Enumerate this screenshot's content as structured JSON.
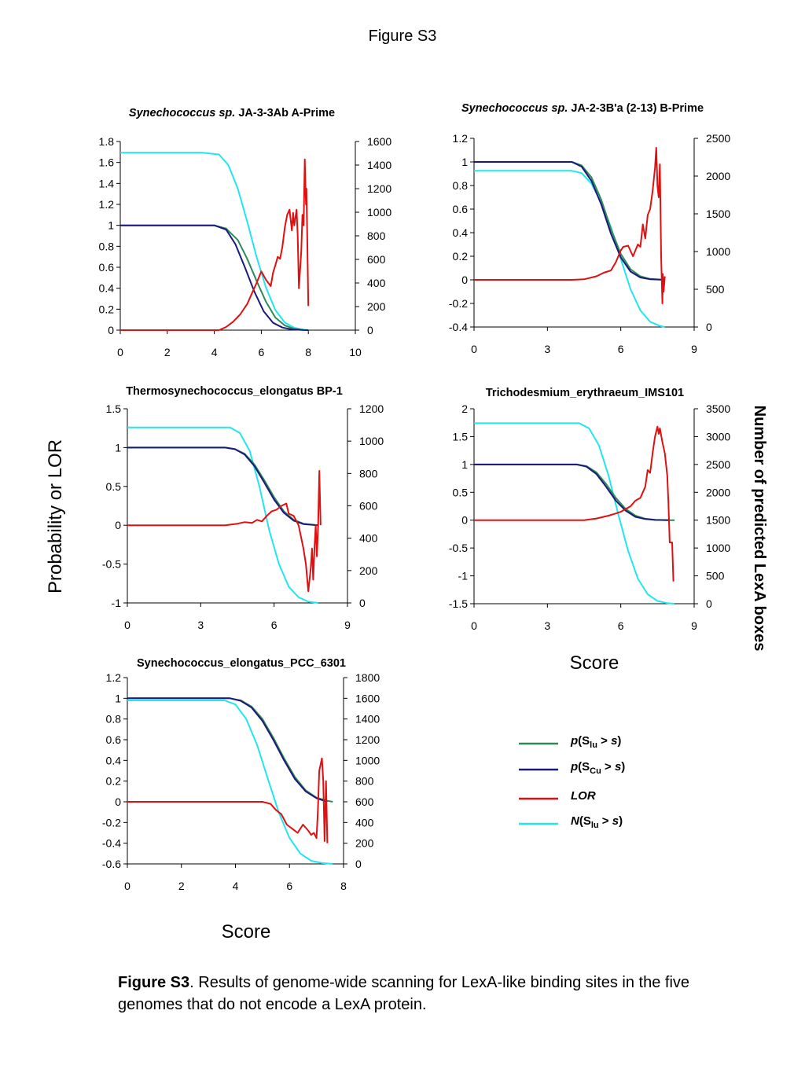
{
  "figure_title": "Figure S3",
  "y_axis_label": "Probability or LOR",
  "y2_axis_label": "Number of predicted LexA boxes",
  "x_axis_label_right": "Score",
  "x_axis_label_bottom": "Score",
  "caption": {
    "lead": "Figure S3",
    "text": ". Results of genome-wide scanning for LexA-like binding sites in the five genomes that do not encode a LexA protein."
  },
  "legend": {
    "items": [
      {
        "key": "p_lu",
        "pre_italic": "p",
        "mid": "(S",
        "sub": "lu",
        "post": " > ",
        "post_italic": "s",
        "end": ")",
        "color": "#2e8b57"
      },
      {
        "key": "p_cu",
        "pre_italic": "p",
        "mid": "(S",
        "sub": "Cu",
        "post": " > ",
        "post_italic": "s",
        "end": ")",
        "color": "#1a1a7a"
      },
      {
        "key": "lor",
        "pre_italic": "LOR",
        "mid": "",
        "sub": "",
        "post": "",
        "post_italic": "",
        "end": "",
        "color": "#e01010"
      },
      {
        "key": "n_lu",
        "pre_italic": "N",
        "mid": "(S",
        "sub": "lu",
        "post": " > ",
        "post_italic": "s",
        "end": ")",
        "color": "#22e5ee"
      }
    ]
  },
  "colors": {
    "p_lu": "#2e8b57",
    "p_cu": "#1a1a7a",
    "lor": "#e01010",
    "n_lu": "#22e5ee"
  },
  "chart_data": [
    {
      "type": "line",
      "title_italic": "Synechococcus sp.",
      "title_rest": " JA-3-3Ab A-Prime",
      "xlim": [
        0,
        10
      ],
      "xticks": [
        0,
        2,
        4,
        6,
        8,
        10
      ],
      "ylim": [
        0,
        1.8
      ],
      "yticks": [
        0,
        0.2,
        0.4,
        0.6,
        0.8,
        1,
        1.2,
        1.4,
        1.6,
        1.8
      ],
      "y2lim": [
        0,
        1600
      ],
      "y2ticks": [
        0,
        200,
        400,
        600,
        800,
        1000,
        1200,
        1400,
        1600
      ],
      "series": [
        {
          "key": "n_lu",
          "axis": "y2",
          "x": [
            0,
            3.5,
            4.2,
            4.6,
            5.0,
            5.4,
            5.8,
            6.2,
            6.6,
            7.0,
            7.4,
            7.8,
            8.0
          ],
          "y": [
            1505,
            1505,
            1490,
            1400,
            1200,
            920,
            620,
            360,
            170,
            65,
            20,
            4,
            0
          ]
        },
        {
          "key": "p_lu",
          "axis": "y",
          "x": [
            0,
            4.0,
            4.5,
            5.0,
            5.4,
            5.8,
            6.2,
            6.6,
            7.0,
            7.4,
            7.8,
            8.0
          ],
          "y": [
            1,
            1,
            0.97,
            0.86,
            0.68,
            0.47,
            0.27,
            0.12,
            0.045,
            0.012,
            0.002,
            0
          ]
        },
        {
          "key": "p_cu",
          "axis": "y",
          "x": [
            0,
            4.0,
            4.5,
            4.9,
            5.3,
            5.7,
            6.1,
            6.5,
            6.9,
            7.3,
            7.8,
            8.0
          ],
          "y": [
            1,
            1,
            0.96,
            0.82,
            0.6,
            0.37,
            0.18,
            0.07,
            0.025,
            0.007,
            0.001,
            0
          ]
        },
        {
          "key": "lor",
          "axis": "y",
          "x": [
            0,
            4.0,
            4.2,
            4.5,
            4.8,
            5.1,
            5.4,
            5.6,
            5.8,
            6.0,
            6.2,
            6.4,
            6.5,
            6.6,
            6.7,
            6.8,
            6.9,
            7.0,
            7.1,
            7.2,
            7.3,
            7.35,
            7.4,
            7.5,
            7.55,
            7.6,
            7.7,
            7.75,
            7.8,
            7.85,
            7.9,
            7.92,
            7.95,
            8.0
          ],
          "y": [
            0,
            0,
            0,
            0.03,
            0.08,
            0.15,
            0.25,
            0.35,
            0.45,
            0.56,
            0.48,
            0.42,
            0.55,
            0.62,
            0.7,
            0.68,
            0.8,
            0.98,
            1.1,
            1.15,
            0.95,
            1.12,
            1.0,
            1.15,
            0.9,
            0.4,
            0.75,
            1.1,
            1.0,
            1.63,
            1.2,
            1.35,
            0.95,
            0.23
          ]
        }
      ]
    },
    {
      "type": "line",
      "title_italic": "Synechococcus sp.",
      "title_rest": " JA-2-3B'a (2-13) B-Prime",
      "xlim": [
        0,
        9
      ],
      "xticks": [
        0,
        3,
        6,
        9
      ],
      "ylim": [
        -0.4,
        1.2
      ],
      "yticks": [
        -0.4,
        -0.2,
        0,
        0.2,
        0.4,
        0.6,
        0.8,
        1,
        1.2
      ],
      "y2lim": [
        0,
        2500
      ],
      "y2ticks": [
        0,
        500,
        1000,
        1500,
        2000,
        2500
      ],
      "series": [
        {
          "key": "n_lu",
          "axis": "y2",
          "x": [
            0,
            4.0,
            4.4,
            4.8,
            5.2,
            5.6,
            6.0,
            6.4,
            6.8,
            7.2,
            7.6,
            7.8
          ],
          "y": [
            2070,
            2070,
            2040,
            1900,
            1650,
            1320,
            900,
            500,
            220,
            70,
            15,
            0
          ]
        },
        {
          "key": "p_lu",
          "axis": "y",
          "x": [
            0,
            4.0,
            4.4,
            4.8,
            5.2,
            5.6,
            6.0,
            6.4,
            6.8,
            7.2,
            7.8
          ],
          "y": [
            1,
            1,
            0.97,
            0.87,
            0.68,
            0.43,
            0.22,
            0.09,
            0.03,
            0.008,
            0
          ]
        },
        {
          "key": "p_cu",
          "axis": "y",
          "x": [
            0,
            4.0,
            4.4,
            4.8,
            5.2,
            5.6,
            6.0,
            6.4,
            6.8,
            7.2,
            7.8
          ],
          "y": [
            1,
            1,
            0.96,
            0.84,
            0.64,
            0.39,
            0.19,
            0.07,
            0.02,
            0.005,
            0
          ]
        },
        {
          "key": "lor",
          "axis": "y",
          "x": [
            0,
            4.0,
            4.5,
            5.0,
            5.3,
            5.6,
            5.8,
            6.0,
            6.1,
            6.3,
            6.5,
            6.7,
            6.8,
            6.9,
            7.0,
            7.1,
            7.2,
            7.3,
            7.4,
            7.45,
            7.5,
            7.55,
            7.6,
            7.65,
            7.7,
            7.72,
            7.75,
            7.8
          ],
          "y": [
            0,
            0,
            0.005,
            0.03,
            0.06,
            0.08,
            0.15,
            0.25,
            0.28,
            0.29,
            0.2,
            0.3,
            0.28,
            0.47,
            0.35,
            0.55,
            0.6,
            0.75,
            0.95,
            1.12,
            0.8,
            0.7,
            0.98,
            0.2,
            -0.2,
            0.05,
            -0.1,
            0.03
          ]
        }
      ]
    },
    {
      "type": "line",
      "title_italic": "",
      "title_rest": "Thermosynechococcus_elongatus BP-1",
      "xlim": [
        0,
        9
      ],
      "xticks": [
        0,
        3,
        6,
        9
      ],
      "ylim": [
        -1,
        1.5
      ],
      "yticks": [
        -1,
        -0.5,
        0,
        0.5,
        1,
        1.5
      ],
      "y2lim": [
        0,
        1200
      ],
      "y2ticks": [
        0,
        200,
        400,
        600,
        800,
        1000,
        1200
      ],
      "series": [
        {
          "key": "n_lu",
          "axis": "y2",
          "x": [
            0,
            4.2,
            4.6,
            5.0,
            5.4,
            5.8,
            6.2,
            6.6,
            7.0,
            7.4,
            7.8
          ],
          "y": [
            1085,
            1085,
            1050,
            940,
            720,
            450,
            240,
            100,
            35,
            8,
            0
          ]
        },
        {
          "key": "p_lu",
          "axis": "y",
          "x": [
            0,
            4.0,
            4.4,
            4.8,
            5.2,
            5.6,
            6.0,
            6.4,
            6.8,
            7.2,
            7.8
          ],
          "y": [
            1,
            1,
            0.98,
            0.92,
            0.78,
            0.58,
            0.36,
            0.18,
            0.07,
            0.02,
            0
          ]
        },
        {
          "key": "p_cu",
          "axis": "y",
          "x": [
            0,
            4.0,
            4.4,
            4.8,
            5.2,
            5.6,
            6.0,
            6.4,
            6.8,
            7.2,
            7.8
          ],
          "y": [
            1,
            1,
            0.98,
            0.91,
            0.76,
            0.55,
            0.33,
            0.16,
            0.06,
            0.015,
            0
          ]
        },
        {
          "key": "lor",
          "axis": "y",
          "x": [
            0,
            4.0,
            4.5,
            4.8,
            5.1,
            5.3,
            5.5,
            5.7,
            5.9,
            6.1,
            6.3,
            6.5,
            6.6,
            6.8,
            7.0,
            7.1,
            7.2,
            7.3,
            7.4,
            7.5,
            7.55,
            7.6,
            7.65,
            7.7,
            7.75,
            7.8,
            7.85,
            7.9
          ],
          "y": [
            0,
            0,
            0.02,
            0.04,
            0.03,
            0.07,
            0.05,
            0.12,
            0.18,
            0.2,
            0.25,
            0.28,
            0.15,
            0.12,
            0,
            -0.15,
            -0.3,
            -0.5,
            -0.85,
            -0.55,
            -0.3,
            -0.7,
            -0.3,
            0,
            -0.4,
            0,
            0.7,
            0
          ]
        }
      ]
    },
    {
      "type": "line",
      "title_italic": "",
      "title_rest": "Trichodesmium_erythraeum_IMS101",
      "xlim": [
        0,
        9
      ],
      "xticks": [
        0,
        3,
        6,
        9
      ],
      "ylim": [
        -1.5,
        2
      ],
      "yticks": [
        -1.5,
        -1,
        -0.5,
        0,
        0.5,
        1,
        1.5,
        2
      ],
      "y2lim": [
        0,
        3500
      ],
      "y2ticks": [
        0,
        500,
        1000,
        1500,
        2000,
        2500,
        3000,
        3500
      ],
      "series": [
        {
          "key": "n_lu",
          "axis": "y2",
          "x": [
            0,
            4.3,
            4.7,
            5.1,
            5.5,
            5.9,
            6.3,
            6.7,
            7.1,
            7.5,
            7.9,
            8.2
          ],
          "y": [
            3240,
            3240,
            3150,
            2850,
            2300,
            1600,
            950,
            450,
            170,
            50,
            10,
            0
          ]
        },
        {
          "key": "p_lu",
          "axis": "y",
          "x": [
            0,
            4.2,
            4.6,
            5.0,
            5.4,
            5.8,
            6.2,
            6.6,
            7.0,
            7.4,
            8.0,
            8.2
          ],
          "y": [
            1,
            1,
            0.97,
            0.86,
            0.65,
            0.4,
            0.2,
            0.08,
            0.025,
            0.006,
            0,
            0
          ]
        },
        {
          "key": "p_cu",
          "axis": "y",
          "x": [
            0,
            4.2,
            4.6,
            5.0,
            5.4,
            5.8,
            6.2,
            6.6,
            7.0,
            7.4,
            8.0
          ],
          "y": [
            1,
            1,
            0.96,
            0.83,
            0.6,
            0.35,
            0.17,
            0.06,
            0.02,
            0.004,
            0
          ]
        },
        {
          "key": "lor",
          "axis": "y",
          "x": [
            0,
            4.5,
            5.0,
            5.5,
            5.8,
            6.0,
            6.2,
            6.4,
            6.6,
            6.8,
            7.0,
            7.1,
            7.2,
            7.3,
            7.4,
            7.5,
            7.55,
            7.6,
            7.7,
            7.8,
            7.9,
            7.95,
            8.0,
            8.1,
            8.15
          ],
          "y": [
            0,
            0,
            0.03,
            0.08,
            0.12,
            0.15,
            0.2,
            0.25,
            0.35,
            0.4,
            0.6,
            0.9,
            0.85,
            1.2,
            1.5,
            1.68,
            1.55,
            1.65,
            1.4,
            1.2,
            0.8,
            0.3,
            -0.4,
            -0.4,
            -1.1
          ]
        }
      ]
    },
    {
      "type": "line",
      "title_italic": "",
      "title_rest": "Synechococcus_elongatus_PCC_6301",
      "xlim": [
        0,
        8
      ],
      "xticks": [
        0,
        2,
        4,
        6,
        8
      ],
      "ylim": [
        -0.6,
        1.2
      ],
      "yticks": [
        -0.6,
        -0.4,
        -0.2,
        0,
        0.2,
        0.4,
        0.6,
        0.8,
        1,
        1.2
      ],
      "y2lim": [
        0,
        1800
      ],
      "y2ticks": [
        0,
        200,
        400,
        600,
        800,
        1000,
        1200,
        1400,
        1600,
        1800
      ],
      "series": [
        {
          "key": "n_lu",
          "axis": "y2",
          "x": [
            0,
            3.6,
            4.0,
            4.4,
            4.8,
            5.2,
            5.6,
            6.0,
            6.4,
            6.8,
            7.2,
            7.6
          ],
          "y": [
            1580,
            1580,
            1540,
            1400,
            1150,
            820,
            500,
            250,
            100,
            30,
            8,
            0
          ]
        },
        {
          "key": "p_lu",
          "axis": "y",
          "x": [
            0,
            3.8,
            4.2,
            4.6,
            5.0,
            5.4,
            5.8,
            6.2,
            6.6,
            7.0,
            7.4,
            7.6
          ],
          "y": [
            1,
            1,
            0.98,
            0.92,
            0.8,
            0.62,
            0.42,
            0.24,
            0.11,
            0.04,
            0.01,
            0
          ]
        },
        {
          "key": "p_cu",
          "axis": "y",
          "x": [
            0,
            3.8,
            4.2,
            4.6,
            5.0,
            5.4,
            5.8,
            6.2,
            6.6,
            7.0,
            7.4
          ],
          "y": [
            1,
            1,
            0.975,
            0.91,
            0.78,
            0.6,
            0.4,
            0.22,
            0.1,
            0.035,
            0
          ]
        },
        {
          "key": "lor",
          "axis": "y",
          "x": [
            0,
            4.0,
            4.5,
            5.0,
            5.3,
            5.5,
            5.7,
            5.9,
            6.1,
            6.3,
            6.5,
            6.7,
            6.8,
            6.9,
            7.0,
            7.05,
            7.1,
            7.2,
            7.25,
            7.3,
            7.35,
            7.4
          ],
          "y": [
            0,
            0,
            0,
            0,
            -0.02,
            -0.08,
            -0.12,
            -0.22,
            -0.26,
            -0.3,
            -0.22,
            -0.28,
            -0.32,
            -0.3,
            -0.35,
            -0.1,
            0.3,
            0.42,
            0.2,
            -0.38,
            0.2,
            -0.4
          ]
        }
      ]
    }
  ]
}
